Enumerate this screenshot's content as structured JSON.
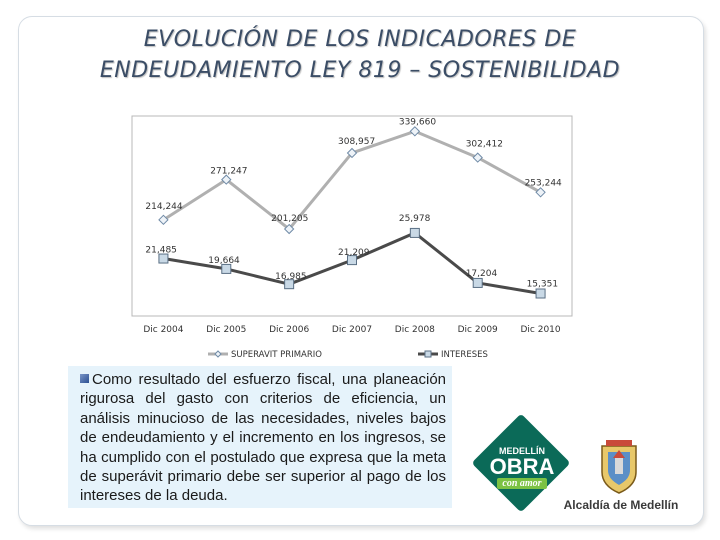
{
  "title": {
    "line1": "EVOLUCIÓN DE LOS INDICADORES DE",
    "line2": "ENDEUDAMIENTO LEY 819 – SOSTENIBILIDAD"
  },
  "chart_data": {
    "type": "line",
    "categories": [
      "Dic 2004",
      "Dic 2005",
      "Dic 2006",
      "Dic 2007",
      "Dic 2008",
      "Dic 2009",
      "Dic 2010"
    ],
    "series": [
      {
        "name": "SUPERAVIT PRIMARIO",
        "values": [
          214244,
          271247,
          201205,
          308957,
          339660,
          302412,
          253244
        ],
        "labels": [
          "214,244",
          "271,247",
          "201,205",
          "308,957",
          "339,660",
          "302,412",
          "253,244"
        ],
        "color": "#b0b0b0",
        "marker": "diamond"
      },
      {
        "name": "INTERESES",
        "values": [
          21485,
          19664,
          16985,
          21209,
          25978,
          17204,
          15351
        ],
        "labels": [
          "21,485",
          "19,664",
          "16,985",
          "21,209",
          "25,978",
          "17,204",
          "15,351"
        ],
        "color": "#4a4a4a",
        "marker": "square"
      }
    ],
    "note": "broken value axis: upper band for superávit, lower band for intereses",
    "title": "",
    "xlabel": "",
    "ylabel": ""
  },
  "text_block": {
    "paragraph": "Como resultado del esfuerzo fiscal, una planeación rigurosa del gasto con criterios de eficiencia, un análisis minucioso de las necesidades, niveles bajos de endeudamiento y el incremento en los ingresos, se ha cumplido con el postulado que expresa que la meta de superávit primario debe ser superior al pago de los intereses de la deuda."
  },
  "logo": {
    "line1": "MEDELLÍN",
    "line2": "OBRA",
    "line3": "con amor"
  },
  "footer": {
    "alcaldia": "Alcaldía de Medellín"
  },
  "colors": {
    "title": "#3b4d66",
    "textbox_bg": "#e6f3fb",
    "logo_green": "#0b6a58",
    "logo_lime": "#7cc243"
  }
}
